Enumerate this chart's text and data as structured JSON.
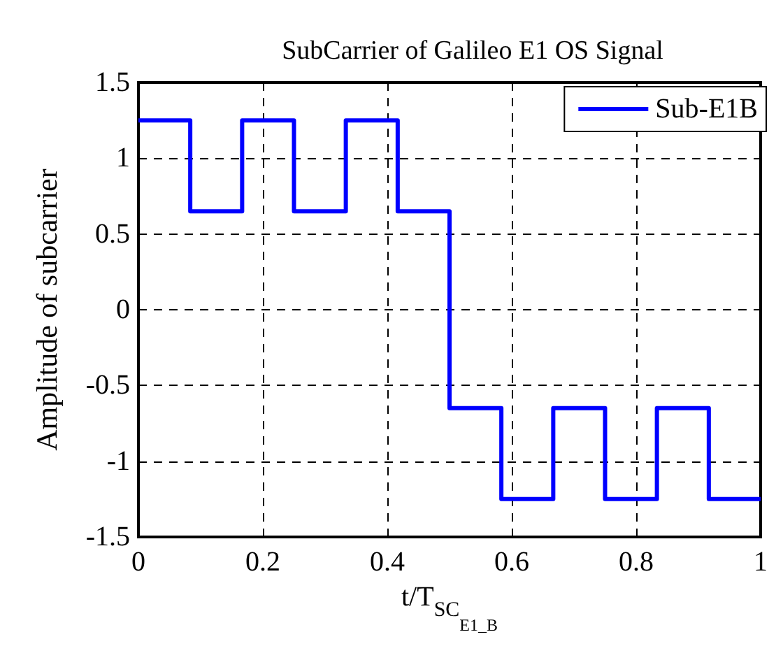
{
  "chart_data": {
    "type": "step",
    "title": "SubCarrier of Galileo E1 OS Signal",
    "xlabel": "t/T$_{SC}$$_{E1_B}$",
    "ylabel": "Amplitude of subcarrier",
    "x": [
      0,
      0.0833,
      0.1667,
      0.25,
      0.3333,
      0.4167,
      0.5,
      0.5833,
      0.6667,
      0.75,
      0.8333,
      0.9167,
      1
    ],
    "series": [
      {
        "name": "Sub-E1B",
        "color": "#0000ff",
        "values": [
          1.25,
          0.65,
          1.25,
          0.65,
          1.25,
          0.65,
          -0.65,
          -1.25,
          -0.65,
          -1.25,
          -0.65,
          -1.25,
          -1.25
        ]
      }
    ],
    "xlim": [
      0,
      1
    ],
    "xticks": [
      0,
      0.2,
      0.4,
      0.6,
      0.8,
      1
    ],
    "ylim": [
      -1.5,
      1.5
    ],
    "yticks": [
      -1.5,
      -1,
      -0.5,
      0,
      0.5,
      1,
      1.5
    ],
    "grid": true,
    "legend": "top right",
    "line_style": "solid"
  }
}
